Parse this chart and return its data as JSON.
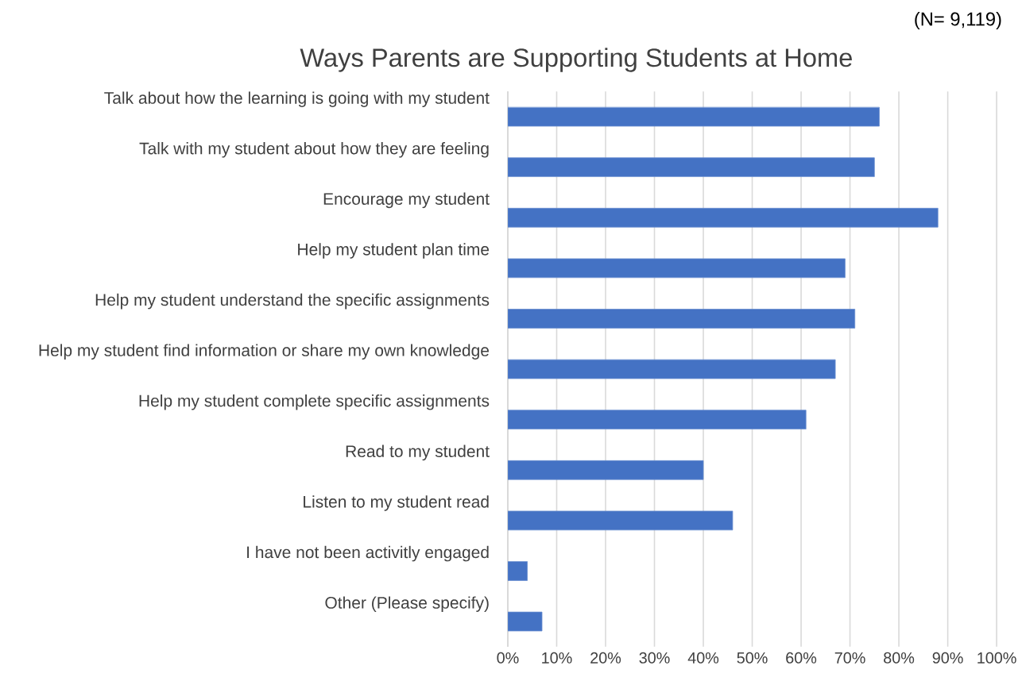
{
  "chart_data": {
    "type": "bar",
    "orientation": "horizontal",
    "title": "Ways Parents are Supporting Students at Home",
    "annotations": [
      "(N= 9,119)"
    ],
    "categories": [
      "Talk about how the learning is going with my student",
      "Talk with my student about how they are feeling",
      "Encourage my student",
      "Help my student plan time",
      "Help my student understand the specific assignments",
      "Help my student find information or share my own knowledge",
      "Help my student complete specific assignments",
      "Read to my student",
      "Listen to my student read",
      "I have not been activitly engaged",
      "Other (Please specify)"
    ],
    "values": [
      76,
      75,
      88,
      69,
      71,
      67,
      61,
      40,
      46,
      4,
      7
    ],
    "color": "#4472c4",
    "xlim": [
      0,
      100
    ],
    "xticks": [
      {
        "value": 0,
        "label": "0%"
      },
      {
        "value": 10,
        "label": "10%"
      },
      {
        "value": 20,
        "label": "20%"
      },
      {
        "value": 30,
        "label": "30%"
      },
      {
        "value": 40,
        "label": "40%"
      },
      {
        "value": 50,
        "label": "50%"
      },
      {
        "value": 60,
        "label": "60%"
      },
      {
        "value": 70,
        "label": "70%"
      },
      {
        "value": 80,
        "label": "80%"
      },
      {
        "value": 90,
        "label": "90%"
      },
      {
        "value": 100,
        "label": "100%"
      }
    ],
    "grid": "x"
  }
}
